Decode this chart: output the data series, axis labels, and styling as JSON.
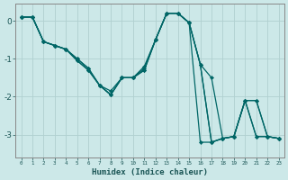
{
  "xlabel": "Humidex (Indice chaleur)",
  "ylabel": "",
  "background_color": "#cce8e8",
  "grid_color": "#b0d0d0",
  "line_color": "#006666",
  "xlim": [
    -0.5,
    23.5
  ],
  "ylim": [
    -3.6,
    0.45
  ],
  "yticks": [
    0,
    -1,
    -2,
    -3
  ],
  "xtick_labels": [
    "0",
    "1",
    "2",
    "3",
    "4",
    "5",
    "6",
    "7",
    "8",
    "9",
    "10",
    "11",
    "12",
    "13",
    "14",
    "15",
    "16",
    "17",
    "18",
    "19",
    "20",
    "21",
    "22",
    "23"
  ],
  "lines": [
    [
      0.1,
      0.1,
      -0.55,
      -0.65,
      -0.75,
      -1.0,
      -1.25,
      -1.7,
      -1.95,
      -1.5,
      -1.5,
      -1.2,
      -0.5,
      0.2,
      0.2,
      -0.05,
      -1.15,
      -1.5,
      -3.1,
      -3.05,
      -2.1,
      -2.1,
      -3.05,
      -3.1
    ],
    [
      0.1,
      0.1,
      -0.55,
      -0.65,
      -0.75,
      -1.0,
      -1.25,
      -1.7,
      -1.85,
      -1.5,
      -1.5,
      -1.25,
      -0.5,
      0.2,
      0.2,
      -0.05,
      -1.15,
      -3.2,
      -3.1,
      -3.05,
      -2.1,
      -3.05,
      -3.05,
      -3.1
    ],
    [
      0.1,
      0.1,
      -0.55,
      -0.65,
      -0.75,
      -1.05,
      -1.3,
      -1.7,
      -1.95,
      -1.5,
      -1.5,
      -1.3,
      -0.5,
      0.2,
      0.2,
      -0.05,
      -3.2,
      -3.2,
      -3.1,
      -3.05,
      -2.1,
      -3.05,
      -3.05,
      -3.1
    ],
    [
      0.1,
      0.1,
      -0.55,
      -0.65,
      -0.75,
      -1.05,
      -1.3,
      -1.7,
      -1.95,
      -1.5,
      -1.5,
      -1.3,
      -0.5,
      0.2,
      0.2,
      -0.05,
      -1.15,
      -3.2,
      -3.1,
      -3.05,
      -2.1,
      -2.1,
      -3.05,
      -3.1
    ]
  ]
}
